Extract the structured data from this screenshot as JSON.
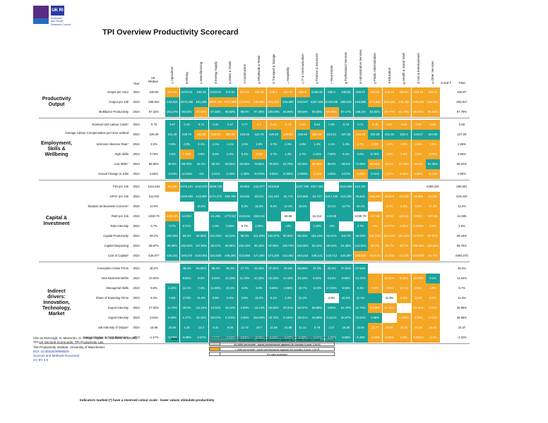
{
  "logo": {
    "ukri": "UK RI",
    "esrc": "Economic\nand Social\nResearch Council"
  },
  "title": "TPI Overview Productivity Scorecard",
  "header": {
    "year": "Year",
    "uk_median": "UK\nMedian",
    "sectors": [
      "Agriculture",
      "Mining",
      "Manufacturing",
      "Energy Supply",
      "Water & Waste",
      "Construction",
      "Wholesale & Retail",
      "Transport & Storage",
      "Hospitality",
      "IT & Communication",
      "Finance & Insurance",
      "Real Estate",
      "Professional Services",
      "Administrative Services",
      "Public Administration",
      "Education",
      "Health & Social Work",
      "Arts & Entertainment",
      "Other Services"
    ],
    "letters": [
      "A",
      "B",
      "C",
      "D",
      "E",
      "F",
      "G",
      "H",
      "I",
      "J",
      "K",
      "L",
      "M",
      "N",
      "O",
      "P",
      "Q",
      "R",
      "S"
    ],
    "s_and_t": "S and T",
    "total": "Total"
  },
  "colors": {
    "green": "#1aa39a",
    "gray": "#c5c5c5",
    "orange": "#f5a623",
    "white": "#ffffff"
  },
  "groups": [
    {
      "name": "Productivity Output",
      "rows": [
        {
          "label": "Output per Hour",
          "year": "2024",
          "uk": "£38.83",
          "cells": [
            "£20.91",
            "£270.04",
            "£48.23",
            "£123.81",
            "£72.61",
            "£37.52",
            "£34.35",
            "£29.2",
            "£21.67",
            "£52.6",
            "£106.29",
            "£82.0",
            "£38.83",
            "£29.37",
            "£53.02",
            "£40.24",
            "£30.57",
            "£26.49",
            "£28.32"
          ],
          "c": "oggggoooooggggooooo",
          "total": "£39.87"
        },
        {
          "label": "Output per Job",
          "year": "2024",
          "uk": "£68,543",
          "cells": [
            "£43,516",
            "£579,256",
            "£81,305",
            "£206,153",
            "£137,566",
            "£73,952",
            "£49,584",
            "£51,402",
            "£26,966",
            "£93,947",
            "£187,348",
            "£128,538",
            "£68,543",
            "£46,986",
            "£74,546",
            "£54,186",
            "£45,330",
            "£35,339",
            "£44,917"
          ],
          "c": "gggoooooggggggooooo",
          "total": "£63,917"
        },
        {
          "label": "Multifactor Productivity",
          "year": "2024",
          "uk": "97.15%",
          "cells": [
            "104.27%",
            "80.62%",
            "97.15%",
            "97.46%",
            "96.63%",
            "99.0%",
            "97.28%",
            "100.03%",
            "93.94%",
            "98.64%",
            "98.83%",
            "88.85%",
            "97.17%",
            "106.1%",
            "92.92%",
            "90.77%",
            "92.73%",
            "99.94%",
            "85.94%"
          ],
          "c": "ggoggggggggogggoooo",
          "total": "97.79%"
        }
      ]
    },
    {
      "name": "Employment, Skills & Wellbeing",
      "rows": [
        {
          "label": "Nominal Unit Labour Costs*",
          "year": "2024",
          "uk": "0.75",
          "cells": [
            "0.67",
            "0.16",
            "0.71",
            "0.32",
            "0.47",
            "0.77",
            "0.7",
            "0.93",
            "0.79",
            "0.93",
            "0.52",
            "0.09",
            "0.75",
            "0.71",
            "0.75",
            "0.87",
            "0.93",
            "0.86",
            "0.82"
          ],
          "c": "ggggggooooggggooooo",
          "total": "0.66"
        },
        {
          "label": "Average Labour Compensation per Hour worked",
          "year": "2024",
          "uk": "£25.49",
          "cells": [
            "£11.49",
            "£48.76",
            "£33.35",
            "£32.54",
            "£30.98",
            "£25.55",
            "£23.76",
            "£25.48",
            "£18.02",
            "£39.92",
            "£51.59",
            "£24.54",
            "£27.63",
            "£18.49",
            "£32.29",
            "£31.45",
            "£25.4",
            "£19.67",
            "£23.05"
          ],
          "c": "ggooogggogoggoggggg",
          "total": "£27.09"
        },
        {
          "label": "Sickness Absence Rate*",
          "year": "2024",
          "uk": "2.0%",
          "cells": [
            "0.9%",
            "2.3%",
            "2.1%",
            "2.1%",
            "2.1%",
            "1.5%",
            "1.9%",
            "2.7%",
            "2.3%",
            "1.8%",
            "1.4%",
            "1.1%",
            "1.3%",
            "1.7%",
            "2.3%",
            "2.4%",
            "2.9%",
            "2.0%",
            "2.0%"
          ],
          "c": "gggggggggggggoooooo",
          "total": "1.95%"
        },
        {
          "label": "High Skills",
          "year": "2023",
          "uk": "3.75%",
          "cells": [
            "2.5%",
            "7.75%",
            "3.8%",
            "8.4%",
            "6.3%",
            "5.4%",
            "2.1%",
            "2.7%",
            "1.3%",
            "4.7%",
            "4.15%",
            "7.65%",
            "6.4%",
            "3.0%",
            "5.75%",
            "2.9%",
            "2.9%",
            "3.4%",
            "3.75%"
          ],
          "c": "goggggoggggggggoooo",
          "total": "3.95%"
        },
        {
          "label": "Low Skills*",
          "year": "2023",
          "uk": "86.55%",
          "cells": [
            "85.9%",
            "89.75%",
            "82.3%",
            "89.9%",
            "86.55%",
            "84.35%",
            "78.95%",
            "79.25%",
            "82.75%",
            "92.35%",
            "89.85%",
            "89.6%",
            "89.4%",
            "73.95%",
            "88.55%",
            "92.1%",
            "87.45%",
            "84.3%",
            "81.35%"
          ],
          "c": "ggggggggggogggoooog",
          "total": "86.22%"
        },
        {
          "label": "Annual Change in Jobs",
          "year": "2024",
          "uk": "0.55%",
          "cells": [
            "-0.63%",
            "-13.64%",
            "-0%",
            "3.31%",
            "-2.29%",
            "-1.38%",
            "-0.075%",
            "0.55%",
            "0.069%",
            "0.068%",
            "-3.12%",
            "2.08%",
            "2.57%",
            "-3.28%",
            "2.41%",
            "1.07%",
            "4.06%",
            "4.09%",
            "-5.18%"
          ],
          "c": "ggggggggggoggogoooo",
          "total": "0.95%"
        }
      ]
    },
    {
      "name": "Capital & Investment",
      "rows": [
        {
          "label": "FDI per Job",
          "year": "2024",
          "uk": "£111,634",
          "cells": [
            "£5,336",
            "£275,421",
            "£142,672",
            "£535,709",
            "",
            "£9,656",
            "£41,077",
            "£63,638",
            "",
            "£107,760",
            "£617,361",
            "",
            "£115,508",
            "£41,797",
            "",
            "",
            "",
            "",
            "£269,220"
          ],
          "c": "oggg-gggggg-gg-----",
          "total": "£69,591"
        },
        {
          "label": "GFCF per Job",
          "year": "2024",
          "uk": "£11,042",
          "cells": [
            "",
            "£140,550",
            "£13,369",
            "£171,073",
            "£59,799",
            "£5,536",
            "£5,612",
            "£11,240",
            "£2,774",
            "£24,668",
            "£3,727",
            "£217,106",
            "£13,106",
            "£6,831",
            "£40,298",
            "£8,978",
            "£3,549",
            "£8,060",
            "£1,882"
          ],
          "c": "-gggggggggggggooooo",
          "total": "£15,440"
        },
        {
          "label": "Taxation as Business Concern*",
          "year": "2025",
          "uk": "14.0%",
          "cells": [
            "",
            "",
            "14.0%",
            "",
            "",
            "6.3%",
            "15.5%",
            "9.4%",
            "12.1%",
            "18.4%",
            "",
            "10.1%",
            "14.7%",
            "19.1%",
            "",
            "6.7%",
            "6.8%",
            "6.2%",
            "17.4%"
          ],
          "c": "--g--ggggg-ggg-oooo",
          "total": "13.3%"
        },
        {
          "label": "R&D per Job",
          "year": "2024",
          "uk": "£330.79",
          "cells": [
            "£308.33",
            "£4,094",
            "",
            "£1,280",
            "£773.92",
            "£104.54",
            "£524.52",
            "",
            "£8.65",
            "",
            "£2,214",
            "£20.98",
            "",
            "£330.79",
            "£17.08",
            "£9.63",
            "£35.04",
            "£308.1",
            "£87.25"
          ],
          "c": "og-ggggg-g-gg-ooooo",
          "total": "£1,595"
        },
        {
          "label": "R&D Intensity",
          "year": "2024",
          "uk": "0.7%",
          "cells": [
            "0.7%",
            "0.71%",
            "",
            "1.0%",
            "0.56%",
            "0.7%",
            "1.05%",
            "",
            "~0%",
            "",
            "1.18%",
            "~0%",
            "",
            "0.7%",
            "~0%",
            "0.077%",
            "2.89%",
            "0.294%",
            "2.5%"
          ],
          "c": "gg-gg-g-g-gg-gooooo",
          "total": "2.5%"
        },
        {
          "label": "Capital Productivity",
          "year": "2024",
          "uk": "99.2%",
          "cells": [
            "100.26%",
            "83.4%",
            "94.92%",
            "101.03%",
            "92.21%",
            "99.2%",
            "101.09%",
            "102.67%",
            "90.94%",
            "95.48%",
            "101.23%",
            "82.41%",
            "104.7%",
            "96.53%",
            "101.24%",
            "101.24%",
            "101.24%",
            "87.87%",
            "87.87%"
          ],
          "c": "ggggggggggggggooooo",
          "total": "99.18%"
        },
        {
          "label": "Capital Deepening",
          "year": "2024",
          "uk": "98.67%",
          "cells": [
            "96.38%",
            "103.62%",
            "107.68%",
            "98.47%",
            "99.65%",
            "103.42%",
            "96.18%",
            "97.95%",
            "106.74%",
            "104.85%",
            "94.24%",
            "95.54%",
            "91.38%",
            "116.32%",
            "90.7%",
            "90.7%",
            "90.7%",
            "105.65%",
            "105.65%"
          ],
          "c": "ggggggggggggggooooo",
          "total": "99.76%"
        },
        {
          "label": "Cost of Capital*",
          "year": "2024",
          "uk": "£36,677",
          "cells": [
            "£18,421",
            "£49,470",
            "£103,801",
            "£52,005",
            "£48,280",
            "£33,866",
            "£71,064",
            "£73,236",
            "£21,662",
            "£64,218",
            "£39,141",
            "£18,712",
            "£44,057",
            "£36,635",
            "£219.21",
            "£3,405",
            "£7,015",
            "£19,590",
            "£4,704"
          ],
          "c": "gggggggggggggoooooo",
          "total": "£693,073"
        }
      ]
    },
    {
      "name": "Indirect drivers: Innovation, Technology, Market",
      "rows": [
        {
          "label": "Innovation-Active Firms",
          "year": "2022",
          "uk": "36.2%",
          "cells": [
            "",
            "38.3%",
            "53.93%",
            "36.2%",
            "36.2%",
            "27.7%",
            "34.03%",
            "37.61%",
            "20.4%",
            "55.86%",
            "37.3%",
            "25.2%",
            "37.54%",
            "37.54%",
            "",
            "",
            "",
            "",
            ""
          ],
          "c": "-ggggggggggggg-----",
          "total": "36.3%"
        },
        {
          "label": "New Business Births",
          "year": "2022",
          "uk": "10.04%",
          "cells": [
            "",
            "8.82%",
            "9.0%",
            "8.34%",
            "10.03%",
            "11.75%",
            "10.36%",
            "21.15%",
            "14.18%",
            "10.16%",
            "6.94%",
            "9.64%",
            "9.86%",
            "14.72%",
            "",
            "10.41%",
            "9.34%",
            "10.04%",
            "9.2%"
          ],
          "c": "-gggggggggggggoooog",
          "total": "11.52%"
        },
        {
          "label": "Managerial Skills",
          "year": "2023",
          "uk": "9.8%",
          "cells": [
            "4.25%",
            "12.1%",
            "7.4%",
            "11.05%",
            "10.1%",
            "6.8%",
            "5.8%",
            "5.65%",
            "4.95%",
            "10.7%",
            "12.0%",
            "17.05%",
            "10.5%",
            "8.1%",
            "9.6%",
            "7.55%",
            "12.1%",
            "9.9%",
            "9.8%"
          ],
          "c": "ggggggggggggggooooo",
          "total": "9.7%"
        },
        {
          "label": "Share of Exporting Firms",
          "year": "2023",
          "uk": "8.2%",
          "cells": [
            "0.5%",
            "17.8%",
            "21.9%",
            "0.9%",
            "6.0%",
            "0.8%",
            "15.9%",
            "0.1%",
            "1.4%",
            "21.2%",
            "",
            "2.6%",
            "20.0%",
            "11.1%",
            "",
            "11.9%",
            "3.6%",
            "11.6%",
            "8.2%"
          ],
          "c": "ggggggggggg-ggg-ooo",
          "total": "11.5%"
        },
        {
          "label": "Export Intensity",
          "year": "2023",
          "uk": "27.02%",
          "cells": [
            "11.76%",
            "30.6%",
            "111.16%",
            "13.52%",
            "16.14%",
            "2.08%",
            "-43.14%",
            "55.83%",
            "29.31%",
            "62.97%",
            "56.89%",
            "3.69%",
            "51.75%",
            "24.74%",
            "0.248%",
            "11.19%",
            "",
            "43.21%",
            "4.53%"
          ],
          "c": "ggggggggggggggoo-oo",
          "total": "39.08%"
        },
        {
          "label": "Import Intensity",
          "year": "2023",
          "uk": "3.63%",
          "cells": [
            "0.08%",
            "1.17%",
            "30.42%",
            "65.07%",
            "0.373%",
            "3.48%",
            "154.09%",
            "40.73%",
            "0.184%",
            "29.21%",
            "28.89%",
            "0.221%",
            "30.37%",
            "34.52%",
            "2.88%",
            "",
            "1.003%",
            "3.79%",
            "2.44%"
          ],
          "c": "ggggggggggggggg-ooo",
          "total": "39.96%"
        },
        {
          "label": "Job Intensity of Output*",
          "year": "2024",
          "uk": "15.66",
          "cells": [
            "20.64",
            "1.48",
            "12.2",
            "5.31",
            "8.05",
            "14.74",
            "18.7",
            "11.58",
            "41.58",
            "11.12",
            "5.79",
            "2.27",
            "15.66",
            "22.64",
            "11.77",
            "20.49",
            "24.81",
            "34.16",
            "19.03"
          ],
          "c": "ggggggggggggggooooo",
          "total": "15.37"
        },
        {
          "label": "Annual Change in GHG Emissions",
          "year": "2023",
          "uk": "-1.47%",
          "cells": [
            "-0.86%",
            "-6.08%",
            "-2.67%",
            "-14.6%",
            "-0.98%",
            "0.52%",
            "-3.95%",
            "-1.34%",
            "-1.47%",
            "-1.33%",
            "-1.51%",
            "-1.25%",
            "3.09%",
            "-2.48%",
            "-1.59%",
            "-0.61%",
            "0.9%",
            "0.311%",
            "-2.2%"
          ],
          "c": "ggggggggggggggooooo",
          "total": "-4.32%"
        }
      ]
    }
  ],
  "citation": {
    "lines": [
      "Cite as McKeogh, N. MenaAhn, O. Ortega-Argiles, R. Sarsfield, W (2025),",
      "TPI UK Sectoral Scorecards, TPI Productivity Lab,",
      "The Productivity Institute, University of Manchester."
    ],
    "doi": "DOI: 10.48420/30895829",
    "sources": "Sources and Methods Document",
    "license": "CC BY 4.0"
  },
  "legend": {
    "key": "Key:",
    "items": [
      {
        "color": "#1aa39a",
        "text": "> 60th percentile - higher performance against UK median 5-year CAGR"
      },
      {
        "color": "#c5c5c5",
        "text": "40-60th percentile - equal performance against UK median 5-year CAGR"
      },
      {
        "color": "#f5a623",
        "text": "< 40th percentile - lower performance against UK median 5-year CAGR"
      },
      {
        "color": "#ffffff",
        "text": "No data available"
      }
    ]
  },
  "note": "Indicators marked (*) have a reversed colour scale - lower values stimulate productivity"
}
